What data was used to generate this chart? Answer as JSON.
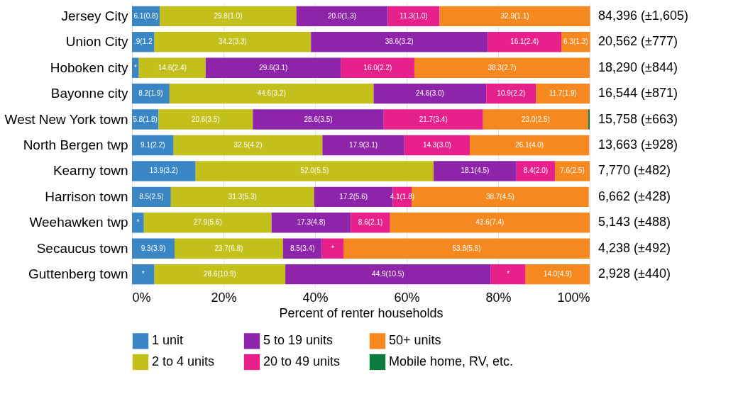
{
  "chart_data": {
    "type": "bar",
    "orientation": "horizontal",
    "stacked": true,
    "xlabel": "Percent of renter households",
    "categories": [
      "Jersey City",
      "Union City",
      "Hoboken city",
      "Bayonne city",
      "West New York town",
      "North Bergen twp",
      "Kearny town",
      "Harrison town",
      "Weehawken twp",
      "Secaucus town",
      "Guttenberg town"
    ],
    "series": [
      {
        "name": "1 unit",
        "color": "#3a86c4",
        "values": [
          6.1,
          4.9,
          1.5,
          8.2,
          5.8,
          9.1,
          13.9,
          8.5,
          2.6,
          9.3,
          4.9
        ],
        "value_labels": [
          "6.1(0.8)",
          ".9(1.2",
          "*",
          "8.2(1.9)",
          "5.8(1.8)",
          "9.1(2.2)",
          "13.9(3.2)",
          "8.5(2.5)",
          "*",
          "9.3(3.9)",
          "*"
        ]
      },
      {
        "name": "2 to 4 units",
        "color": "#c3c01b",
        "values": [
          29.8,
          34.2,
          14.6,
          44.6,
          20.6,
          32.5,
          52.0,
          31.3,
          27.9,
          23.7,
          28.6
        ],
        "value_labels": [
          "29.8(1.0)",
          "34.2(3.3)",
          "14.6(2.4)",
          "44.6(3.2)",
          "20.6(3.5)",
          "32.5(4.2)",
          "52.0(5.5)",
          "31.3(5.3)",
          "27.9(5.6)",
          "23.7(6.8)",
          "28.6(10.9)"
        ]
      },
      {
        "name": "5 to 19 units",
        "color": "#8e24aa",
        "values": [
          20.0,
          38.6,
          29.6,
          24.6,
          28.6,
          17.9,
          18.1,
          17.2,
          17.3,
          8.5,
          44.9
        ],
        "value_labels": [
          "20.0(1.3)",
          "38.6(3.2)",
          "29.6(3.1)",
          "24.6(3.0)",
          "28.6(3.5)",
          "17.9(3.1)",
          "18.1(4.5)",
          "17.2(5.6)",
          "17.3(4.8)",
          "8.5(3.4)",
          "44.9(10.5)"
        ]
      },
      {
        "name": "20 to 49 units",
        "color": "#e8208c",
        "values": [
          11.3,
          16.1,
          16.0,
          10.9,
          21.7,
          14.3,
          8.4,
          4.1,
          8.6,
          4.7,
          7.6
        ],
        "value_labels": [
          "11.3(1.0)",
          "16.1(2.4)",
          "16.0(2.2)",
          "10.9(2.2)",
          "21.7(3.4)",
          "14.3(3.0)",
          "8.4(2.0)",
          "4.1(1.8)",
          "8.6(2.1)",
          "*",
          "*"
        ]
      },
      {
        "name": "50+ units",
        "color": "#f5891f",
        "values": [
          32.9,
          6.3,
          38.3,
          11.7,
          23.0,
          26.1,
          7.6,
          38.7,
          43.6,
          53.8,
          14.0
        ],
        "value_labels": [
          "32.9(1.1)",
          "6.3(1.3)",
          "38.3(2.7)",
          "11.7(1.9)",
          "23.0(2.5)",
          "26.1(4.0)",
          "7.6(2.5)",
          "38.7(4.5)",
          "43.6(7.4)",
          "53.8(5.6)",
          "14.0(4.9)"
        ]
      },
      {
        "name": "Mobile home, RV, etc.",
        "color": "#0b7a3e",
        "values": [
          null,
          null,
          null,
          null,
          0.3,
          null,
          null,
          null,
          null,
          null,
          null
        ],
        "value_labels": [
          null,
          null,
          null,
          null,
          null,
          null,
          null,
          null,
          null,
          null,
          null
        ]
      }
    ],
    "totals": [
      "84,396 (±1,605)",
      "20,562 (±777)",
      "18,290 (±844)",
      "16,544 (±871)",
      "15,758 (±663)",
      "13,663 (±928)",
      "7,770 (±482)",
      "6,662 (±428)",
      "5,143 (±488)",
      "4,238 (±492)",
      "2,928 (±440)"
    ],
    "xlim": [
      0,
      100
    ],
    "xticks": [
      {
        "value": 0,
        "label": "0%"
      },
      {
        "value": 20,
        "label": "20%"
      },
      {
        "value": 40,
        "label": "40%"
      },
      {
        "value": 60,
        "label": "60%"
      },
      {
        "value": 80,
        "label": "80%"
      },
      {
        "value": 100,
        "label": "100%"
      }
    ],
    "grid": "x",
    "legend": "bottom"
  }
}
